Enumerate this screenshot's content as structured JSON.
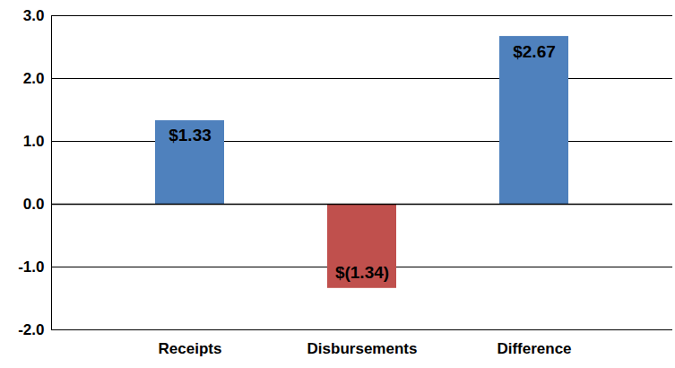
{
  "chart_data": {
    "type": "bar",
    "categories": [
      "Receipts",
      "Disbursements",
      "Difference"
    ],
    "values": [
      1.33,
      -1.34,
      2.67
    ],
    "value_labels": [
      "$1.33",
      "$(1.34)",
      "$2.67"
    ],
    "colors": [
      "#4F81BD",
      "#C0504D",
      "#4F81BD"
    ],
    "ylim": [
      -2,
      3
    ],
    "yticks": [
      {
        "value": -2,
        "label": "-2.0"
      },
      {
        "value": -1,
        "label": "-1.0"
      },
      {
        "value": 0,
        "label": "0.0"
      },
      {
        "value": 1,
        "label": "1.0"
      },
      {
        "value": 2,
        "label": "2.0"
      },
      {
        "value": 3,
        "label": "3.0"
      }
    ],
    "grid": true,
    "data_labels": true
  }
}
